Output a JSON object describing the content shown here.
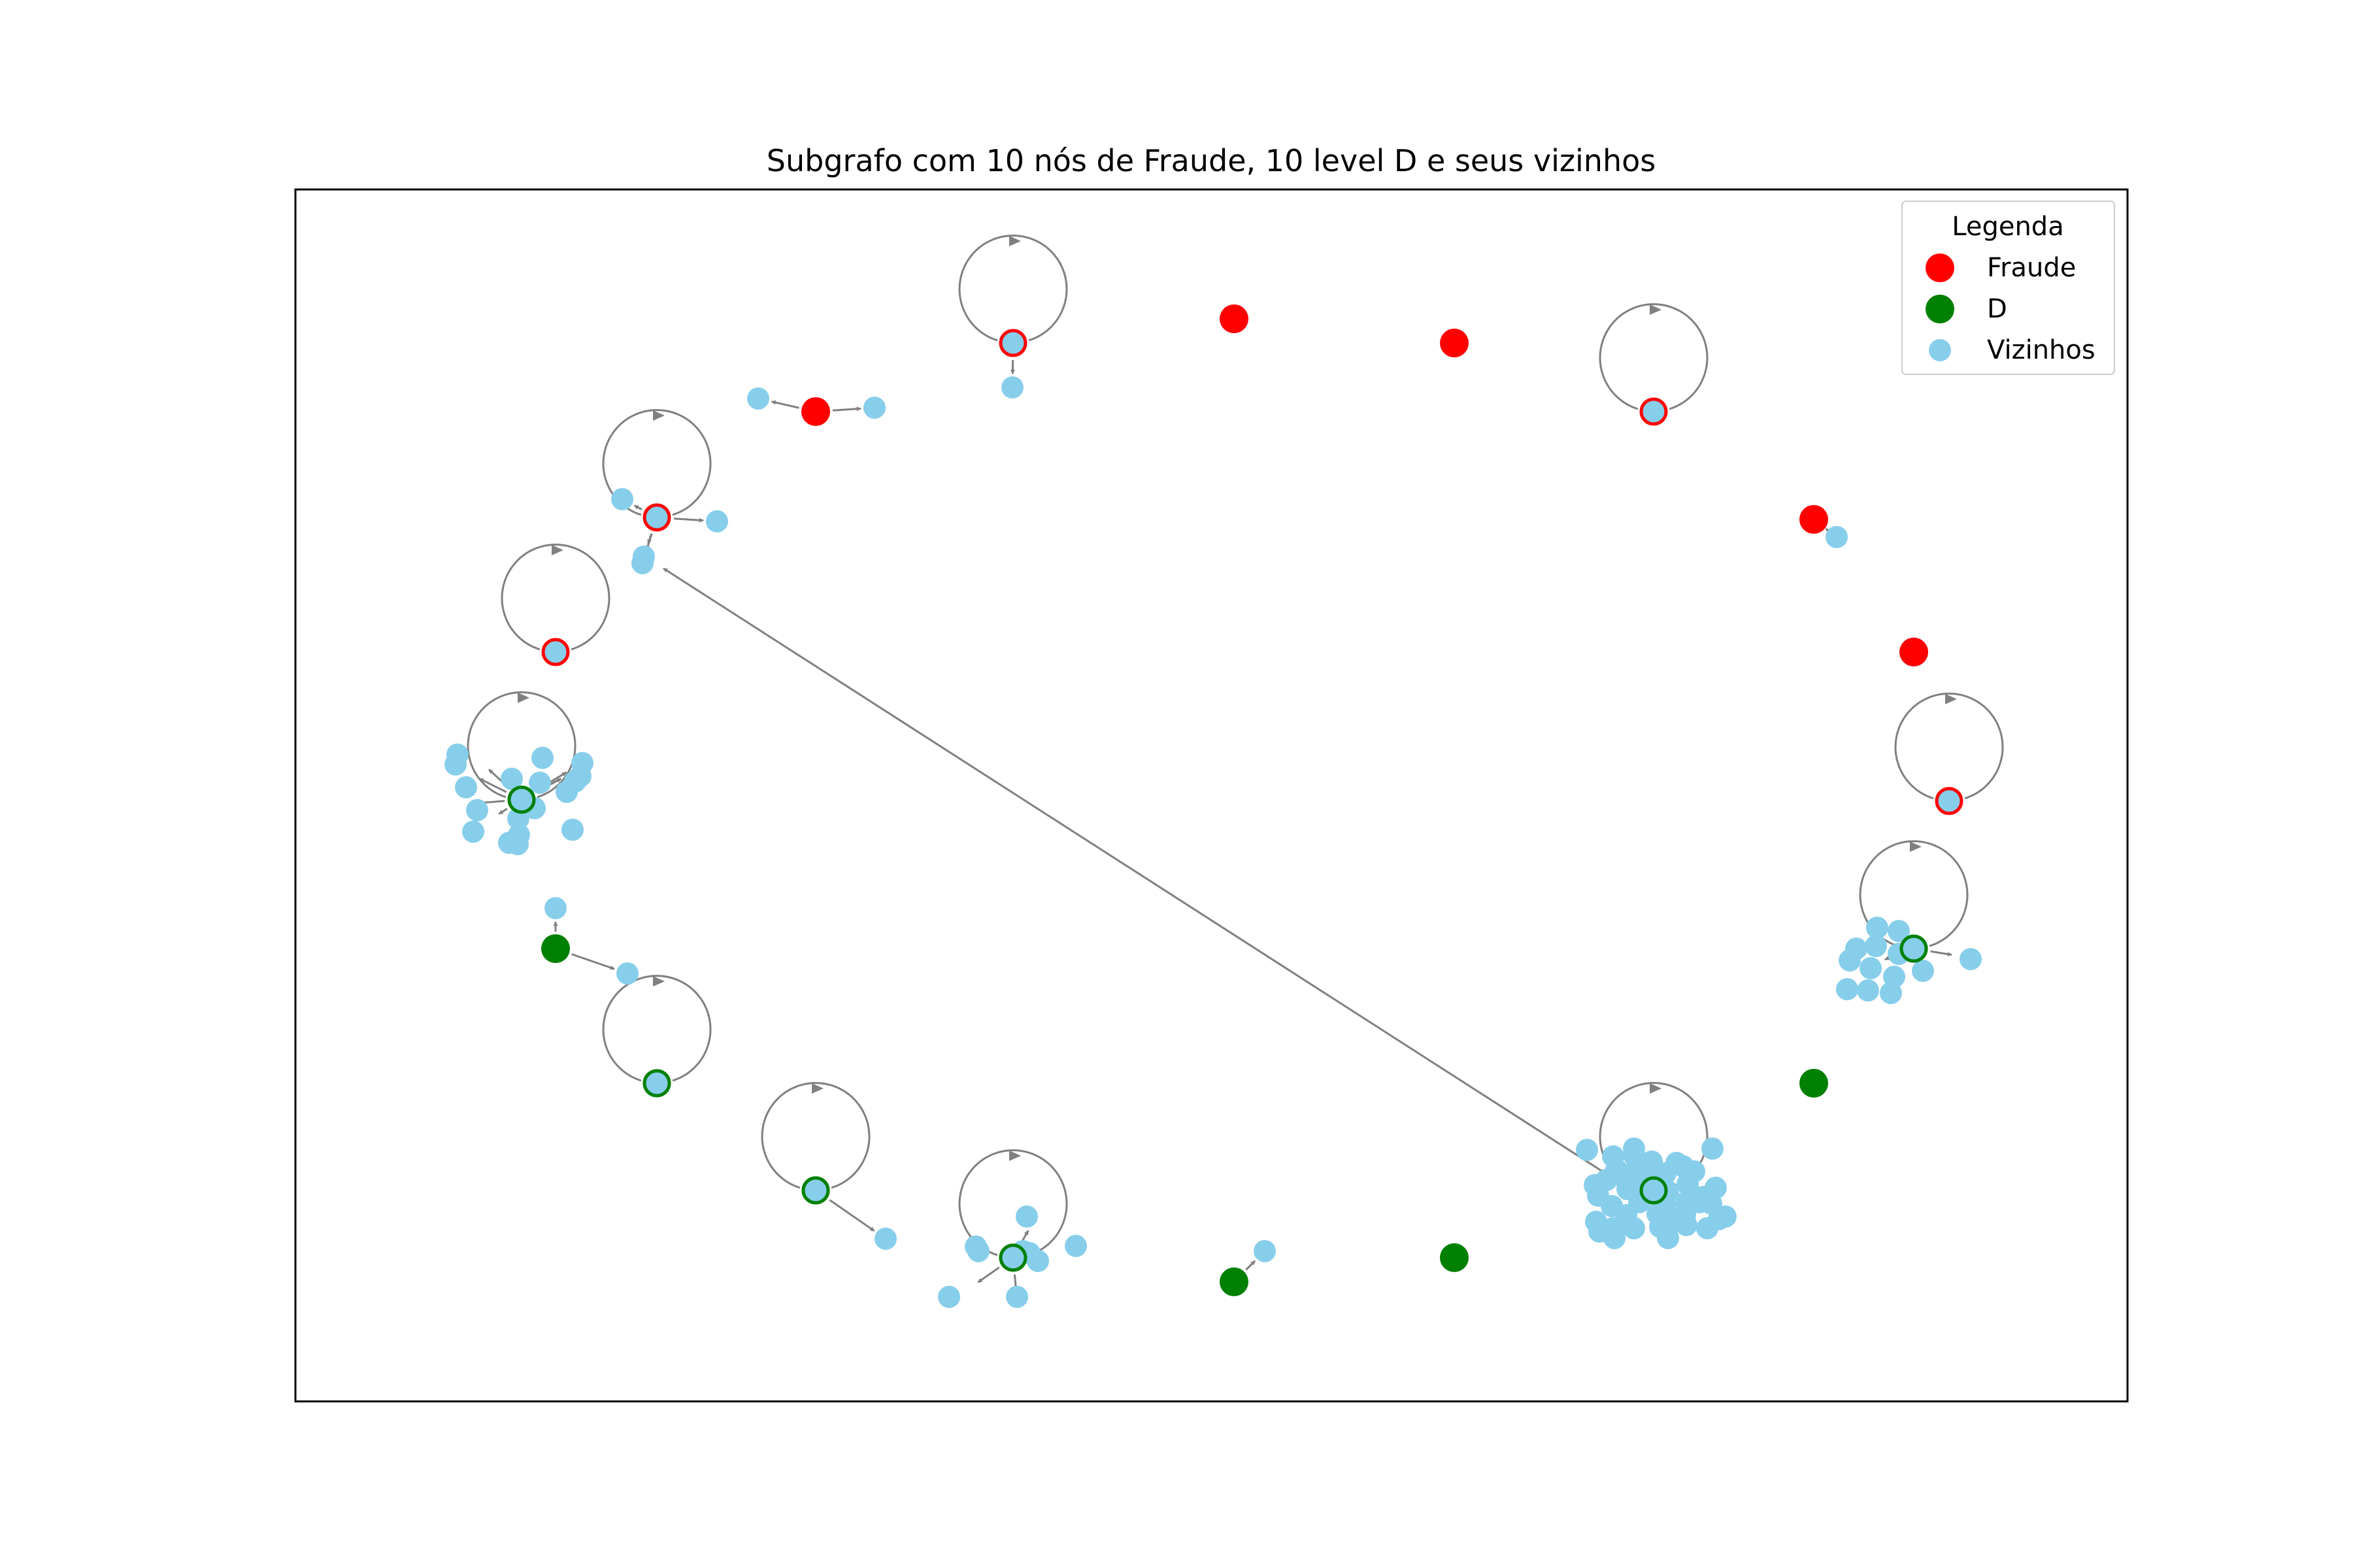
{
  "title": "Subgrafo com 10 nós de Fraude, 10 level D e seus vizinhos",
  "colors": {
    "fraude": "#ff0000",
    "d": "#008000",
    "vizinhos": "#87ceeb",
    "edge": "#808080",
    "frame": "#000000"
  },
  "legend": {
    "title": "Legenda",
    "items": [
      {
        "label": "Fraude",
        "color": "#ff0000"
      },
      {
        "label": "D",
        "color": "#008000"
      },
      {
        "label": "Vizinhos",
        "color": "#87ceeb"
      }
    ]
  },
  "graph": {
    "node_groups": [
      "Fraude",
      "D",
      "Vizinhos"
    ],
    "fraude_node_count": 10,
    "d_node_count": 10,
    "directed": true,
    "self_loops": true
  }
}
